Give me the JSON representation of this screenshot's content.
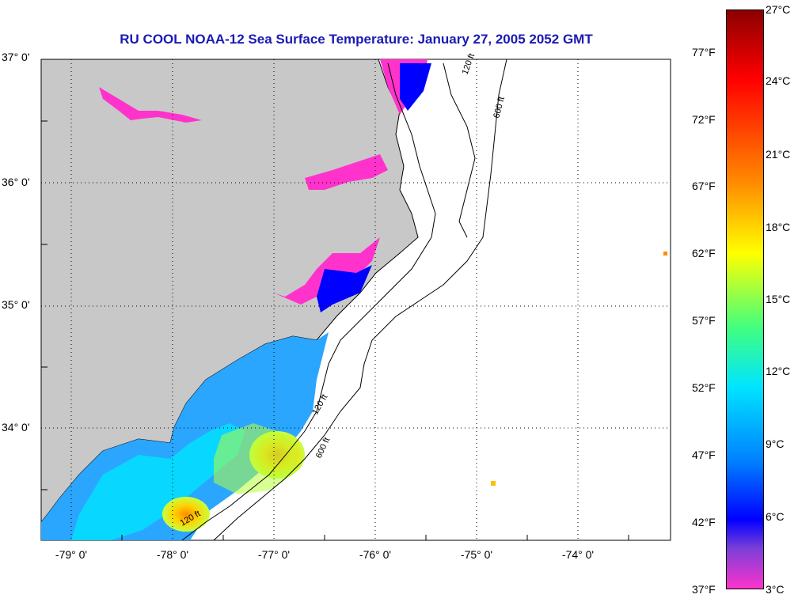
{
  "title": "RU COOL  NOAA-12  Sea Surface Temperature:  January 27, 2005 2052 GMT",
  "lat_labels": [
    "37° 0'",
    "36° 0'",
    "35° 0'",
    "34° 0'"
  ],
  "lon_labels": [
    "-79° 0'",
    "-78° 0'",
    "-77° 0'",
    "-76° 0'",
    "-75° 0'",
    "-74° 0'"
  ],
  "contour_labels": [
    "120 ft",
    "600 ft"
  ],
  "colorbar": {
    "celsius": [
      "27°C",
      "24°C",
      "21°C",
      "18°C",
      "15°C",
      "12°C",
      "9°C",
      "6°C",
      "3°C"
    ],
    "fahrenheit": [
      "77°F",
      "72°F",
      "67°F",
      "62°F",
      "57°F",
      "52°F",
      "47°F",
      "42°F",
      "37°F"
    ],
    "colors": [
      "#8b0000",
      "#ff0000",
      "#ff8c00",
      "#ffff00",
      "#40ff80",
      "#00e5ff",
      "#0080ff",
      "#0000ff",
      "#7b3fd8",
      "#ff3fc8",
      "#ff66cc"
    ]
  },
  "colors": {
    "land": "#c8c8c8",
    "ocean": "#ffffff",
    "title": "#1a1ab4"
  }
}
